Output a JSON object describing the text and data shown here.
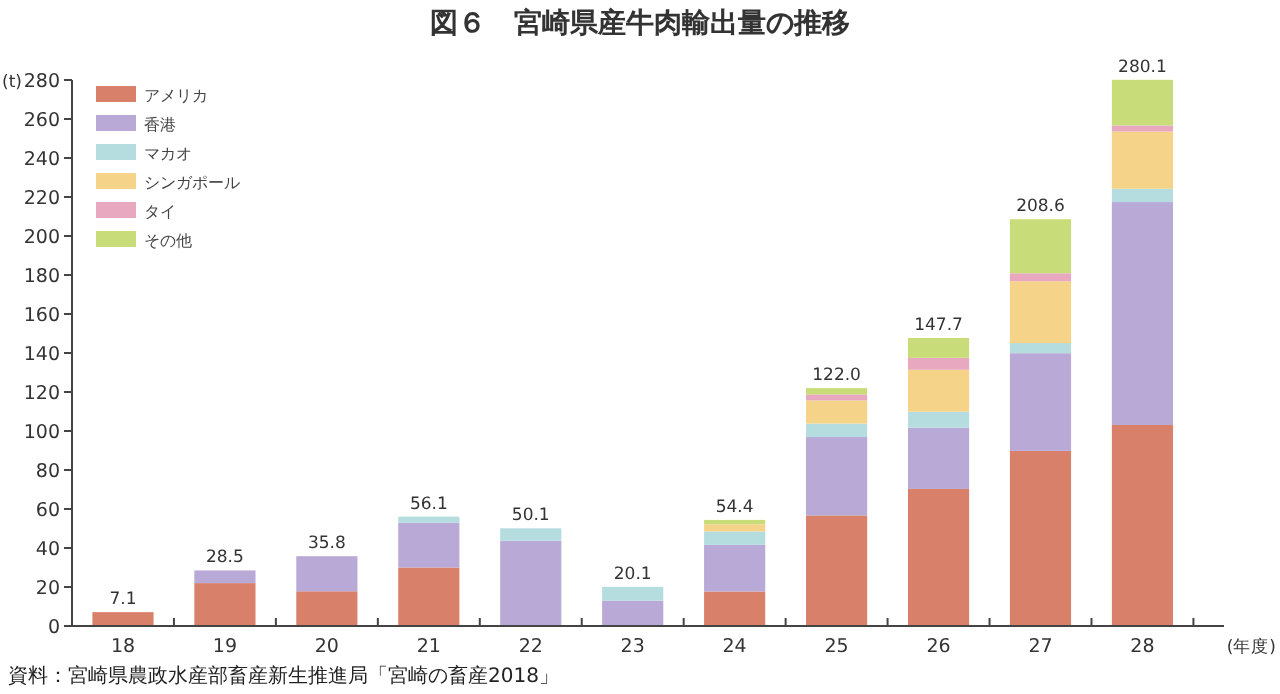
{
  "chart_data": {
    "type": "bar",
    "stacked": true,
    "title": "図６　宮崎県産牛肉輸出量の推移",
    "ylabel": "(t)",
    "xlabel": "(年度)",
    "categories": [
      "18",
      "19",
      "20",
      "21",
      "22",
      "23",
      "24",
      "25",
      "26",
      "27",
      "28"
    ],
    "series": [
      {
        "name": "アメリカ",
        "color": "#d9806a",
        "values": [
          7.1,
          22.0,
          17.8,
          30.0,
          null,
          null,
          17.7,
          56.7,
          70.3,
          89.8,
          103.1
        ]
      },
      {
        "name": "香港",
        "color": "#b8a9d6",
        "values": [
          null,
          6.5,
          18.0,
          23.0,
          43.7,
          13.0,
          23.9,
          40.2,
          31.4,
          50.1,
          114.3
        ]
      },
      {
        "name": "マカオ",
        "color": "#b5dde0",
        "values": [
          null,
          null,
          null,
          3.1,
          6.4,
          7.1,
          6.9,
          6.9,
          8.2,
          5.2,
          6.8
        ]
      },
      {
        "name": "シンガポール",
        "color": "#f5d48a",
        "values": [
          null,
          null,
          null,
          null,
          null,
          null,
          3.7,
          11.9,
          21.5,
          31.7,
          29.4
        ]
      },
      {
        "name": "タイ",
        "color": "#e8a8c0",
        "values": [
          null,
          null,
          null,
          null,
          null,
          null,
          null,
          3.1,
          6.1,
          4.1,
          3.1
        ]
      },
      {
        "name": "その他",
        "color": "#c8dc7a",
        "values": [
          null,
          null,
          null,
          null,
          null,
          null,
          2.2,
          3.2,
          10.2,
          27.7,
          23.4
        ]
      }
    ],
    "totals": [
      "7.1",
      "28.5",
      "35.8",
      "56.1",
      "50.1",
      "20.1",
      "54.4",
      "122.0",
      "147.7",
      "208.6",
      "280.1"
    ],
    "ylim": [
      0,
      280
    ],
    "yticks": [
      0,
      20,
      40,
      60,
      80,
      100,
      120,
      140,
      160,
      180,
      200,
      220,
      240,
      260,
      280
    ],
    "grid": false,
    "legend": "top left",
    "annotations": [
      "資料：宮崎県農政水産部畜産新生推進局「宮崎の畜産2018」"
    ]
  }
}
